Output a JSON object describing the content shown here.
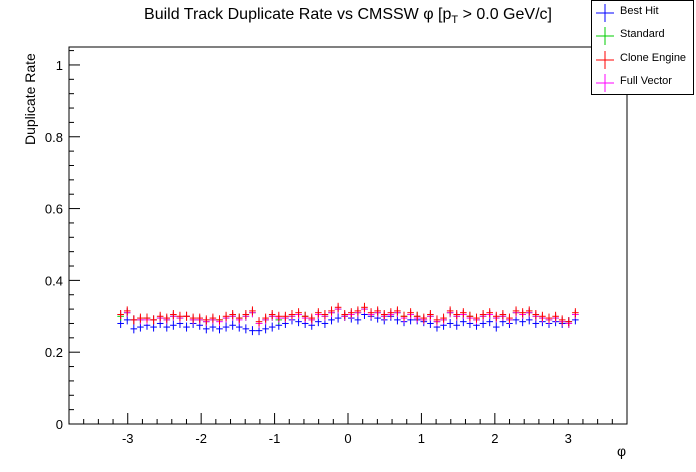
{
  "chart_data": {
    "type": "scatter",
    "title": "Build Track Duplicate Rate vs CMSSW φ [p",
    "title_sub": "T",
    "title_tail": " > 0.0 GeV/c]",
    "xlabel": "φ",
    "ylabel": "Duplicate Rate",
    "xlim": [
      -3.8,
      3.8
    ],
    "ylim": [
      0,
      1.05
    ],
    "xticks": [
      -3,
      -2,
      -1,
      0,
      1,
      2,
      3
    ],
    "yticks": [
      0,
      0.2,
      0.4,
      0.6,
      0.8,
      1
    ],
    "legend_position": "top-right",
    "series": [
      {
        "name": "Best Hit",
        "color": "#0000ff",
        "values": [
          0.28,
          0.29,
          0.265,
          0.27,
          0.275,
          0.27,
          0.28,
          0.27,
          0.275,
          0.28,
          0.27,
          0.28,
          0.275,
          0.265,
          0.27,
          0.265,
          0.27,
          0.275,
          0.27,
          0.265,
          0.26,
          0.26,
          0.265,
          0.27,
          0.275,
          0.28,
          0.29,
          0.285,
          0.28,
          0.275,
          0.285,
          0.28,
          0.29,
          0.295,
          0.3,
          0.295,
          0.29,
          0.305,
          0.3,
          0.295,
          0.29,
          0.3,
          0.29,
          0.285,
          0.29,
          0.29,
          0.285,
          0.28,
          0.27,
          0.275,
          0.28,
          0.275,
          0.285,
          0.28,
          0.275,
          0.28,
          0.285,
          0.27,
          0.285,
          0.28,
          0.29,
          0.285,
          0.29,
          0.28,
          0.285,
          0.28,
          0.285,
          0.28,
          0.285,
          0.29
        ]
      },
      {
        "name": "Standard",
        "color": "#00cc00",
        "values": [
          0.3,
          0.31,
          0.29,
          0.29,
          0.295,
          0.29,
          0.295,
          0.29,
          0.3,
          0.295,
          0.3,
          0.29,
          0.29,
          0.285,
          0.29,
          0.29,
          0.295,
          0.3,
          0.295,
          0.3,
          0.31,
          0.28,
          0.29,
          0.3,
          0.29,
          0.295,
          0.3,
          0.305,
          0.3,
          0.29,
          0.305,
          0.3,
          0.31,
          0.32,
          0.3,
          0.305,
          0.31,
          0.32,
          0.305,
          0.31,
          0.3,
          0.305,
          0.31,
          0.3,
          0.305,
          0.3,
          0.29,
          0.3,
          0.285,
          0.29,
          0.31,
          0.3,
          0.305,
          0.3,
          0.29,
          0.3,
          0.305,
          0.295,
          0.3,
          0.29,
          0.31,
          0.305,
          0.31,
          0.3,
          0.295,
          0.29,
          0.295,
          0.285,
          0.28,
          0.305
        ]
      },
      {
        "name": "Clone Engine",
        "color": "#ff0000",
        "values": [
          0.305,
          0.315,
          0.29,
          0.295,
          0.295,
          0.29,
          0.3,
          0.295,
          0.305,
          0.3,
          0.3,
          0.295,
          0.295,
          0.29,
          0.295,
          0.29,
          0.3,
          0.305,
          0.295,
          0.305,
          0.315,
          0.285,
          0.295,
          0.305,
          0.3,
          0.3,
          0.305,
          0.31,
          0.3,
          0.295,
          0.31,
          0.305,
          0.315,
          0.325,
          0.305,
          0.31,
          0.315,
          0.325,
          0.31,
          0.315,
          0.305,
          0.31,
          0.315,
          0.3,
          0.31,
          0.3,
          0.295,
          0.305,
          0.29,
          0.295,
          0.315,
          0.305,
          0.31,
          0.3,
          0.295,
          0.305,
          0.31,
          0.3,
          0.305,
          0.295,
          0.315,
          0.31,
          0.315,
          0.305,
          0.3,
          0.295,
          0.3,
          0.29,
          0.285,
          0.31
        ]
      },
      {
        "name": "Full Vector",
        "color": "#ff00ff",
        "values": [
          0.305,
          0.31,
          0.29,
          0.29,
          0.29,
          0.29,
          0.295,
          0.29,
          0.3,
          0.295,
          0.3,
          0.29,
          0.29,
          0.285,
          0.29,
          0.285,
          0.295,
          0.3,
          0.29,
          0.3,
          0.31,
          0.28,
          0.29,
          0.3,
          0.295,
          0.295,
          0.3,
          0.305,
          0.295,
          0.29,
          0.305,
          0.3,
          0.31,
          0.32,
          0.3,
          0.305,
          0.31,
          0.32,
          0.305,
          0.31,
          0.3,
          0.305,
          0.31,
          0.295,
          0.305,
          0.295,
          0.29,
          0.3,
          0.285,
          0.29,
          0.31,
          0.3,
          0.305,
          0.295,
          0.29,
          0.3,
          0.305,
          0.295,
          0.3,
          0.29,
          0.31,
          0.305,
          0.31,
          0.3,
          0.295,
          0.29,
          0.295,
          0.285,
          0.28,
          0.305
        ]
      }
    ]
  }
}
